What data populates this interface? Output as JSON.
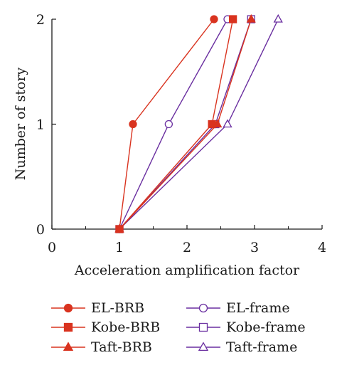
{
  "chart_data": {
    "type": "line",
    "title": "",
    "xlabel": "Acceleration amplification factor",
    "ylabel": "Number of story",
    "xlim": [
      0,
      4
    ],
    "ylim": [
      0,
      2
    ],
    "xticks": [
      "0",
      "1",
      "2",
      "3",
      "4"
    ],
    "yticks": [
      "0",
      "1",
      "2"
    ],
    "grid": false,
    "legend_position": "bottom",
    "series": [
      {
        "name": "EL-BRB",
        "color": "#d9331f",
        "marker": "circle",
        "filled": true,
        "points": [
          {
            "x": 1.0,
            "y": 0
          },
          {
            "x": 1.2,
            "y": 1
          },
          {
            "x": 2.4,
            "y": 2
          }
        ]
      },
      {
        "name": "Kobe-BRB",
        "color": "#d9331f",
        "marker": "square",
        "filled": true,
        "points": [
          {
            "x": 1.0,
            "y": 0
          },
          {
            "x": 2.37,
            "y": 1
          },
          {
            "x": 2.68,
            "y": 2
          }
        ]
      },
      {
        "name": "Taft-BRB",
        "color": "#d9331f",
        "marker": "triangle",
        "filled": true,
        "points": [
          {
            "x": 1.0,
            "y": 0
          },
          {
            "x": 2.45,
            "y": 1
          },
          {
            "x": 2.95,
            "y": 2
          }
        ]
      },
      {
        "name": "EL-frame",
        "color": "#6a2fa0",
        "marker": "circle",
        "filled": false,
        "points": [
          {
            "x": 1.0,
            "y": 0
          },
          {
            "x": 1.73,
            "y": 1
          },
          {
            "x": 2.6,
            "y": 2
          }
        ]
      },
      {
        "name": "Kobe-frame",
        "color": "#6a2fa0",
        "marker": "square",
        "filled": false,
        "points": [
          {
            "x": 1.0,
            "y": 0
          },
          {
            "x": 2.42,
            "y": 1
          },
          {
            "x": 2.95,
            "y": 2
          }
        ]
      },
      {
        "name": "Taft-frame",
        "color": "#6a2fa0",
        "marker": "triangle",
        "filled": false,
        "points": [
          {
            "x": 1.0,
            "y": 0
          },
          {
            "x": 2.6,
            "y": 1
          },
          {
            "x": 3.35,
            "y": 2
          }
        ]
      }
    ]
  }
}
